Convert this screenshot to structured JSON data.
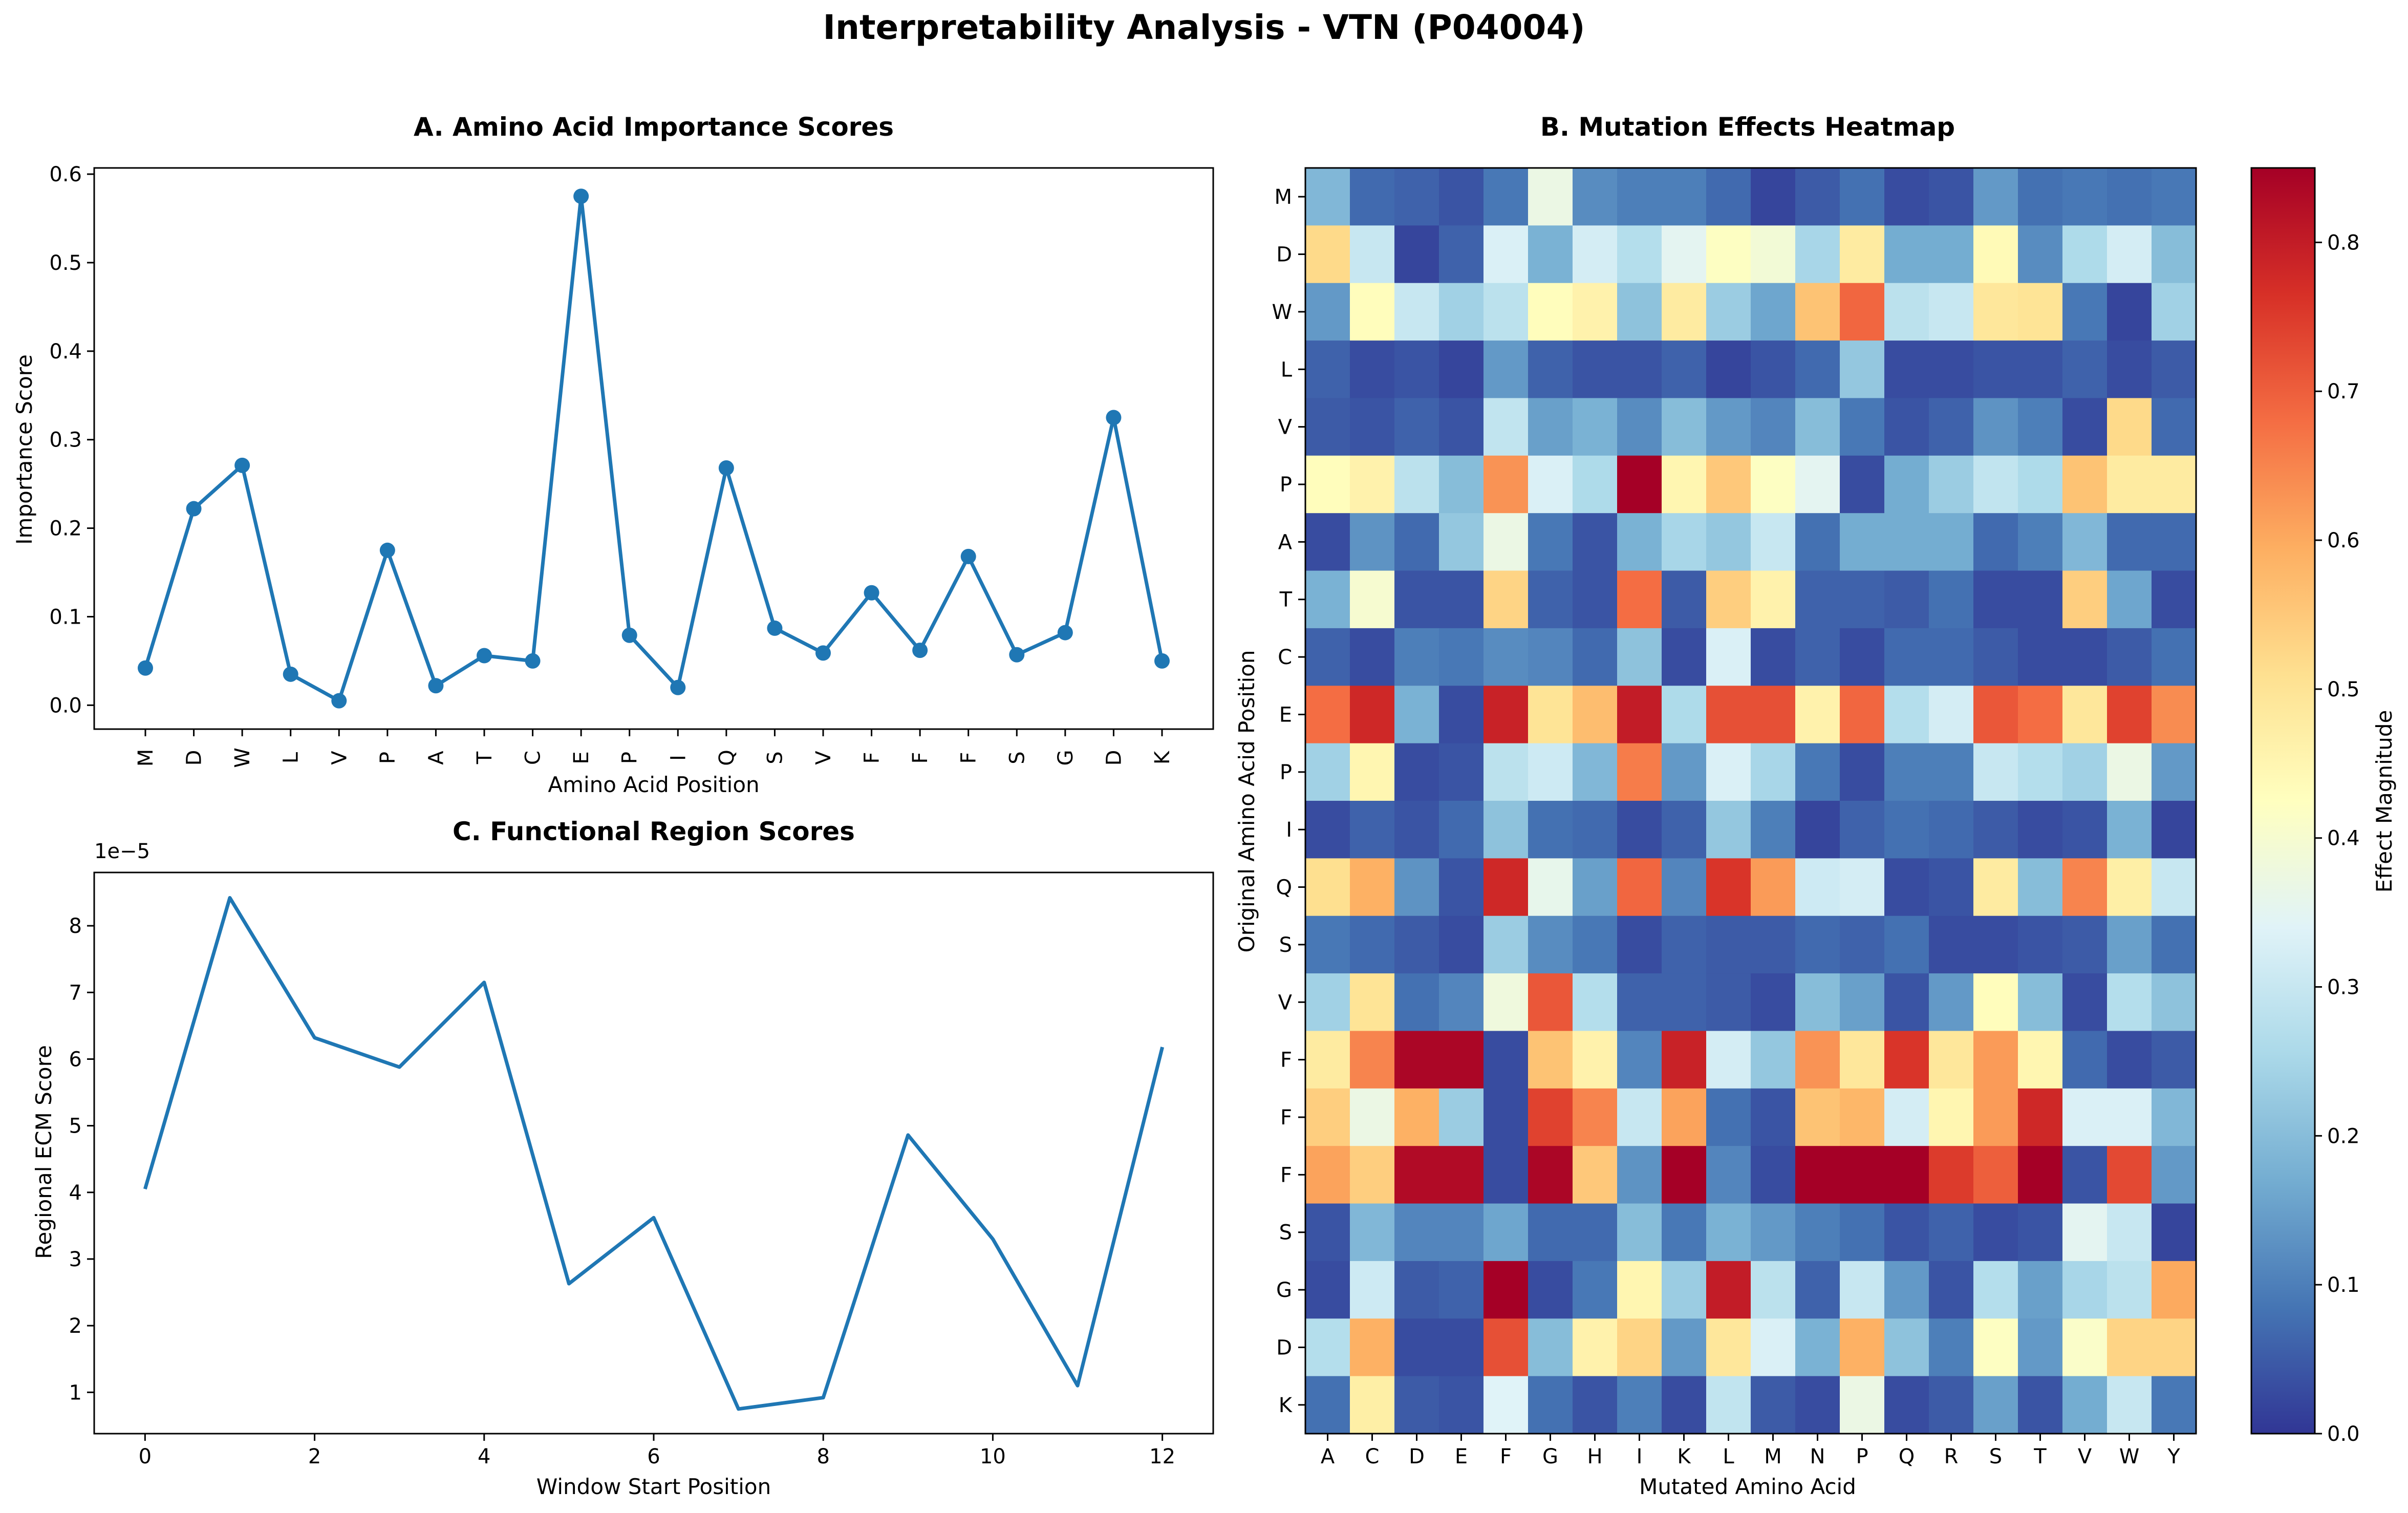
{
  "figure": {
    "title": "Interpretability Analysis - VTN (P04004)"
  },
  "chart_data": [
    {
      "id": "A",
      "type": "line",
      "title": "A. Amino Acid Importance Scores",
      "xlabel": "Amino Acid Position",
      "ylabel": "Importance Score",
      "categories": [
        "M",
        "D",
        "W",
        "L",
        "V",
        "P",
        "A",
        "T",
        "C",
        "E",
        "P",
        "I",
        "Q",
        "S",
        "V",
        "F",
        "F",
        "F",
        "S",
        "G",
        "D",
        "K"
      ],
      "values": [
        0.042,
        0.222,
        0.271,
        0.035,
        0.005,
        0.175,
        0.022,
        0.056,
        0.05,
        0.575,
        0.079,
        0.02,
        0.268,
        0.087,
        0.059,
        0.127,
        0.062,
        0.168,
        0.057,
        0.082,
        0.325,
        0.05
      ],
      "ylim": [
        -0.027,
        0.607
      ],
      "yticks": [
        0.0,
        0.1,
        0.2,
        0.3,
        0.4,
        0.5,
        0.6
      ],
      "ytick_labels": [
        "0.0",
        "0.1",
        "0.2",
        "0.3",
        "0.4",
        "0.5",
        "0.6"
      ],
      "markers": true,
      "color": "#1f77b4",
      "grid": false
    },
    {
      "id": "B",
      "type": "heatmap",
      "title": "B. Mutation Effects Heatmap",
      "xlabel": "Mutated Amino Acid",
      "ylabel": "Original Amino Acid Position",
      "columns": [
        "A",
        "C",
        "D",
        "E",
        "F",
        "G",
        "H",
        "I",
        "K",
        "L",
        "M",
        "N",
        "P",
        "Q",
        "R",
        "S",
        "T",
        "V",
        "W",
        "Y"
      ],
      "rows": [
        "M",
        "D",
        "W",
        "L",
        "V",
        "P",
        "A",
        "T",
        "C",
        "E",
        "P",
        "I",
        "Q",
        "S",
        "V",
        "F",
        "F",
        "F",
        "S",
        "G",
        "D",
        "K"
      ],
      "colorbar_label": "Effect Magnitude",
      "colorbar_ticks": [
        0.0,
        0.1,
        0.2,
        0.3,
        0.4,
        0.5,
        0.6,
        0.7,
        0.8
      ],
      "colorbar_tick_labels": [
        "0.0",
        "0.1",
        "0.2",
        "0.3",
        "0.4",
        "0.5",
        "0.6",
        "0.7",
        "0.8"
      ],
      "vmin": 0.0,
      "vmax": 0.85,
      "colormap": "RdYlBu_r",
      "values": [
        [
          0.19,
          0.07,
          0.06,
          0.04,
          0.09,
          0.37,
          0.12,
          0.1,
          0.1,
          0.07,
          0.02,
          0.05,
          0.08,
          0.03,
          0.04,
          0.14,
          0.08,
          0.09,
          0.08,
          0.09
        ],
        [
          0.52,
          0.3,
          0.02,
          0.06,
          0.33,
          0.18,
          0.32,
          0.27,
          0.35,
          0.42,
          0.39,
          0.25,
          0.48,
          0.17,
          0.17,
          0.44,
          0.12,
          0.26,
          0.32,
          0.2
        ],
        [
          0.14,
          0.43,
          0.3,
          0.24,
          0.28,
          0.43,
          0.46,
          0.21,
          0.48,
          0.23,
          0.16,
          0.56,
          0.69,
          0.28,
          0.3,
          0.49,
          0.5,
          0.09,
          0.02,
          0.24
        ],
        [
          0.06,
          0.03,
          0.04,
          0.02,
          0.14,
          0.06,
          0.04,
          0.04,
          0.06,
          0.02,
          0.04,
          0.07,
          0.22,
          0.03,
          0.03,
          0.04,
          0.04,
          0.06,
          0.03,
          0.05
        ],
        [
          0.05,
          0.04,
          0.06,
          0.04,
          0.29,
          0.15,
          0.18,
          0.12,
          0.2,
          0.14,
          0.11,
          0.2,
          0.09,
          0.04,
          0.06,
          0.13,
          0.1,
          0.03,
          0.52,
          0.07
        ],
        [
          0.43,
          0.46,
          0.28,
          0.2,
          0.63,
          0.33,
          0.26,
          0.85,
          0.45,
          0.55,
          0.42,
          0.35,
          0.03,
          0.17,
          0.23,
          0.29,
          0.26,
          0.56,
          0.48,
          0.48
        ],
        [
          0.03,
          0.13,
          0.07,
          0.22,
          0.37,
          0.09,
          0.04,
          0.18,
          0.25,
          0.22,
          0.3,
          0.08,
          0.17,
          0.17,
          0.17,
          0.07,
          0.1,
          0.19,
          0.07,
          0.07
        ],
        [
          0.18,
          0.4,
          0.04,
          0.04,
          0.53,
          0.06,
          0.04,
          0.68,
          0.05,
          0.54,
          0.46,
          0.06,
          0.06,
          0.05,
          0.08,
          0.03,
          0.03,
          0.54,
          0.16,
          0.03
        ],
        [
          0.06,
          0.03,
          0.1,
          0.09,
          0.12,
          0.11,
          0.07,
          0.21,
          0.03,
          0.33,
          0.03,
          0.06,
          0.03,
          0.07,
          0.07,
          0.05,
          0.03,
          0.03,
          0.05,
          0.08
        ],
        [
          0.68,
          0.78,
          0.18,
          0.03,
          0.79,
          0.5,
          0.57,
          0.8,
          0.26,
          0.72,
          0.72,
          0.46,
          0.69,
          0.27,
          0.32,
          0.71,
          0.68,
          0.49,
          0.74,
          0.64
        ],
        [
          0.24,
          0.45,
          0.03,
          0.04,
          0.28,
          0.31,
          0.19,
          0.66,
          0.14,
          0.33,
          0.25,
          0.09,
          0.03,
          0.1,
          0.1,
          0.3,
          0.27,
          0.24,
          0.37,
          0.14
        ],
        [
          0.03,
          0.06,
          0.04,
          0.07,
          0.21,
          0.08,
          0.07,
          0.03,
          0.06,
          0.22,
          0.1,
          0.02,
          0.06,
          0.08,
          0.07,
          0.05,
          0.03,
          0.04,
          0.18,
          0.02
        ],
        [
          0.51,
          0.59,
          0.13,
          0.04,
          0.78,
          0.36,
          0.15,
          0.69,
          0.11,
          0.76,
          0.62,
          0.31,
          0.32,
          0.03,
          0.04,
          0.48,
          0.2,
          0.65,
          0.47,
          0.3
        ],
        [
          0.09,
          0.07,
          0.05,
          0.03,
          0.23,
          0.12,
          0.09,
          0.03,
          0.06,
          0.05,
          0.05,
          0.07,
          0.06,
          0.08,
          0.03,
          0.03,
          0.04,
          0.05,
          0.15,
          0.08
        ],
        [
          0.24,
          0.5,
          0.08,
          0.11,
          0.38,
          0.71,
          0.27,
          0.06,
          0.06,
          0.05,
          0.03,
          0.2,
          0.15,
          0.04,
          0.14,
          0.43,
          0.2,
          0.03,
          0.27,
          0.21
        ],
        [
          0.48,
          0.65,
          0.84,
          0.84,
          0.03,
          0.56,
          0.46,
          0.11,
          0.79,
          0.32,
          0.22,
          0.63,
          0.49,
          0.76,
          0.49,
          0.62,
          0.45,
          0.07,
          0.03,
          0.05
        ],
        [
          0.54,
          0.37,
          0.59,
          0.23,
          0.03,
          0.74,
          0.65,
          0.3,
          0.61,
          0.08,
          0.04,
          0.56,
          0.58,
          0.32,
          0.45,
          0.62,
          0.78,
          0.33,
          0.33,
          0.19
        ],
        [
          0.61,
          0.54,
          0.83,
          0.83,
          0.03,
          0.84,
          0.55,
          0.13,
          0.85,
          0.11,
          0.03,
          0.85,
          0.85,
          0.85,
          0.75,
          0.7,
          0.85,
          0.04,
          0.73,
          0.14
        ],
        [
          0.04,
          0.19,
          0.11,
          0.11,
          0.16,
          0.07,
          0.07,
          0.2,
          0.09,
          0.18,
          0.14,
          0.1,
          0.08,
          0.04,
          0.06,
          0.03,
          0.04,
          0.35,
          0.3,
          0.02
        ],
        [
          0.03,
          0.31,
          0.05,
          0.06,
          0.85,
          0.03,
          0.09,
          0.45,
          0.23,
          0.8,
          0.28,
          0.06,
          0.3,
          0.14,
          0.04,
          0.27,
          0.15,
          0.25,
          0.28,
          0.6
        ],
        [
          0.27,
          0.59,
          0.03,
          0.03,
          0.72,
          0.2,
          0.46,
          0.53,
          0.14,
          0.49,
          0.33,
          0.18,
          0.59,
          0.21,
          0.1,
          0.42,
          0.14,
          0.41,
          0.53,
          0.53
        ],
        [
          0.08,
          0.47,
          0.05,
          0.04,
          0.34,
          0.08,
          0.04,
          0.1,
          0.03,
          0.29,
          0.05,
          0.03,
          0.37,
          0.03,
          0.05,
          0.15,
          0.04,
          0.17,
          0.3,
          0.09
        ]
      ]
    },
    {
      "id": "C",
      "type": "line",
      "title": "C. Functional Region Scores",
      "xlabel": "Window Start Position",
      "ylabel": "Regional ECM Score",
      "y_scale_label": "1e−5",
      "x": [
        0,
        1,
        2,
        3,
        4,
        5,
        6,
        7,
        8,
        9,
        10,
        11,
        12
      ],
      "values": [
        4.05,
        8.42,
        6.32,
        5.88,
        7.15,
        2.63,
        3.62,
        0.75,
        0.92,
        4.86,
        3.3,
        1.1,
        6.18
      ],
      "xlim": [
        -0.6,
        12.6
      ],
      "ylim": [
        0.38,
        8.8
      ],
      "xticks": [
        0,
        2,
        4,
        6,
        8,
        10,
        12
      ],
      "xtick_labels": [
        "0",
        "2",
        "4",
        "6",
        "8",
        "10",
        "12"
      ],
      "yticks": [
        1,
        2,
        3,
        4,
        5,
        6,
        7,
        8
      ],
      "ytick_labels": [
        "1",
        "2",
        "3",
        "4",
        "5",
        "6",
        "7",
        "8"
      ],
      "markers": false,
      "color": "#1f77b4",
      "grid": false
    }
  ]
}
